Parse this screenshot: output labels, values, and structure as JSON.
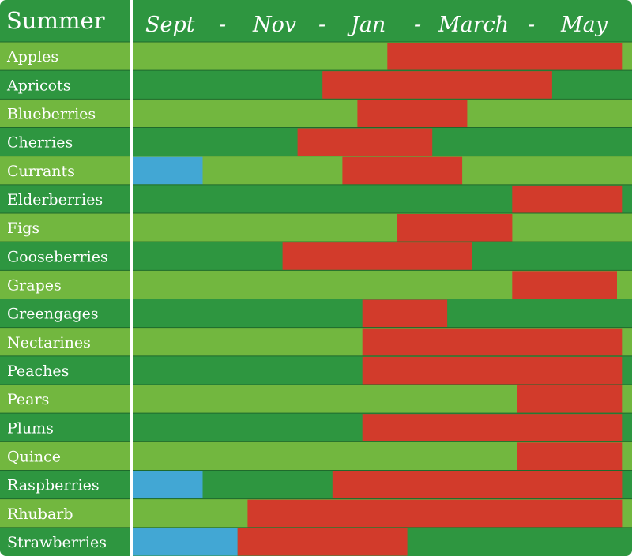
{
  "chart_data": {
    "type": "table",
    "title": "Summer",
    "header_labels": [
      "Sept",
      "-",
      "Nov",
      "-",
      "Jan",
      "-",
      "March",
      "-",
      "May"
    ],
    "timeline_start": "Sept",
    "timeline_end": "May",
    "rows": [
      {
        "name": "Apples",
        "segments": [
          {
            "status": "red",
            "start": 0.51,
            "end": 0.98
          }
        ]
      },
      {
        "name": "Apricots",
        "segments": [
          {
            "status": "red",
            "start": 0.38,
            "end": 0.84
          }
        ]
      },
      {
        "name": "Blueberries",
        "segments": [
          {
            "status": "red",
            "start": 0.45,
            "end": 0.67
          }
        ]
      },
      {
        "name": "Cherries",
        "segments": [
          {
            "status": "red",
            "start": 0.33,
            "end": 0.6
          }
        ]
      },
      {
        "name": "Currants",
        "segments": [
          {
            "status": "blue",
            "start": 0.0,
            "end": 0.14
          },
          {
            "status": "red",
            "start": 0.42,
            "end": 0.66
          }
        ]
      },
      {
        "name": "Elderberries",
        "segments": [
          {
            "status": "red",
            "start": 0.76,
            "end": 0.98
          }
        ]
      },
      {
        "name": "Figs",
        "segments": [
          {
            "status": "red",
            "start": 0.53,
            "end": 0.76
          }
        ]
      },
      {
        "name": "Gooseberries",
        "segments": [
          {
            "status": "red",
            "start": 0.3,
            "end": 0.68
          }
        ]
      },
      {
        "name": "Grapes",
        "segments": [
          {
            "status": "red",
            "start": 0.76,
            "end": 0.97
          }
        ]
      },
      {
        "name": "Greengages",
        "segments": [
          {
            "status": "red",
            "start": 0.46,
            "end": 0.63
          }
        ]
      },
      {
        "name": "Nectarines",
        "segments": [
          {
            "status": "red",
            "start": 0.46,
            "end": 0.98
          }
        ]
      },
      {
        "name": "Peaches",
        "segments": [
          {
            "status": "red",
            "start": 0.46,
            "end": 0.98
          }
        ]
      },
      {
        "name": "Pears",
        "segments": [
          {
            "status": "red",
            "start": 0.77,
            "end": 0.98
          }
        ]
      },
      {
        "name": "Plums",
        "segments": [
          {
            "status": "red",
            "start": 0.46,
            "end": 0.98
          }
        ]
      },
      {
        "name": "Quince",
        "segments": [
          {
            "status": "red",
            "start": 0.77,
            "end": 0.98
          }
        ]
      },
      {
        "name": "Raspberries",
        "segments": [
          {
            "status": "blue",
            "start": 0.0,
            "end": 0.14
          },
          {
            "status": "red",
            "start": 0.4,
            "end": 0.98
          }
        ]
      },
      {
        "name": "Rhubarb",
        "segments": [
          {
            "status": "red",
            "start": 0.23,
            "end": 0.98
          }
        ]
      },
      {
        "name": "Strawberries",
        "segments": [
          {
            "status": "blue",
            "start": 0.0,
            "end": 0.21
          },
          {
            "status": "red",
            "start": 0.21,
            "end": 0.55
          }
        ]
      }
    ]
  },
  "colors": {
    "dark_green": "#2e9640",
    "light_green": "#72b73f",
    "red": "#d23b2b",
    "blue": "#42a7d4",
    "text": "#ffffff",
    "grid_line": "#1e6a2c"
  }
}
